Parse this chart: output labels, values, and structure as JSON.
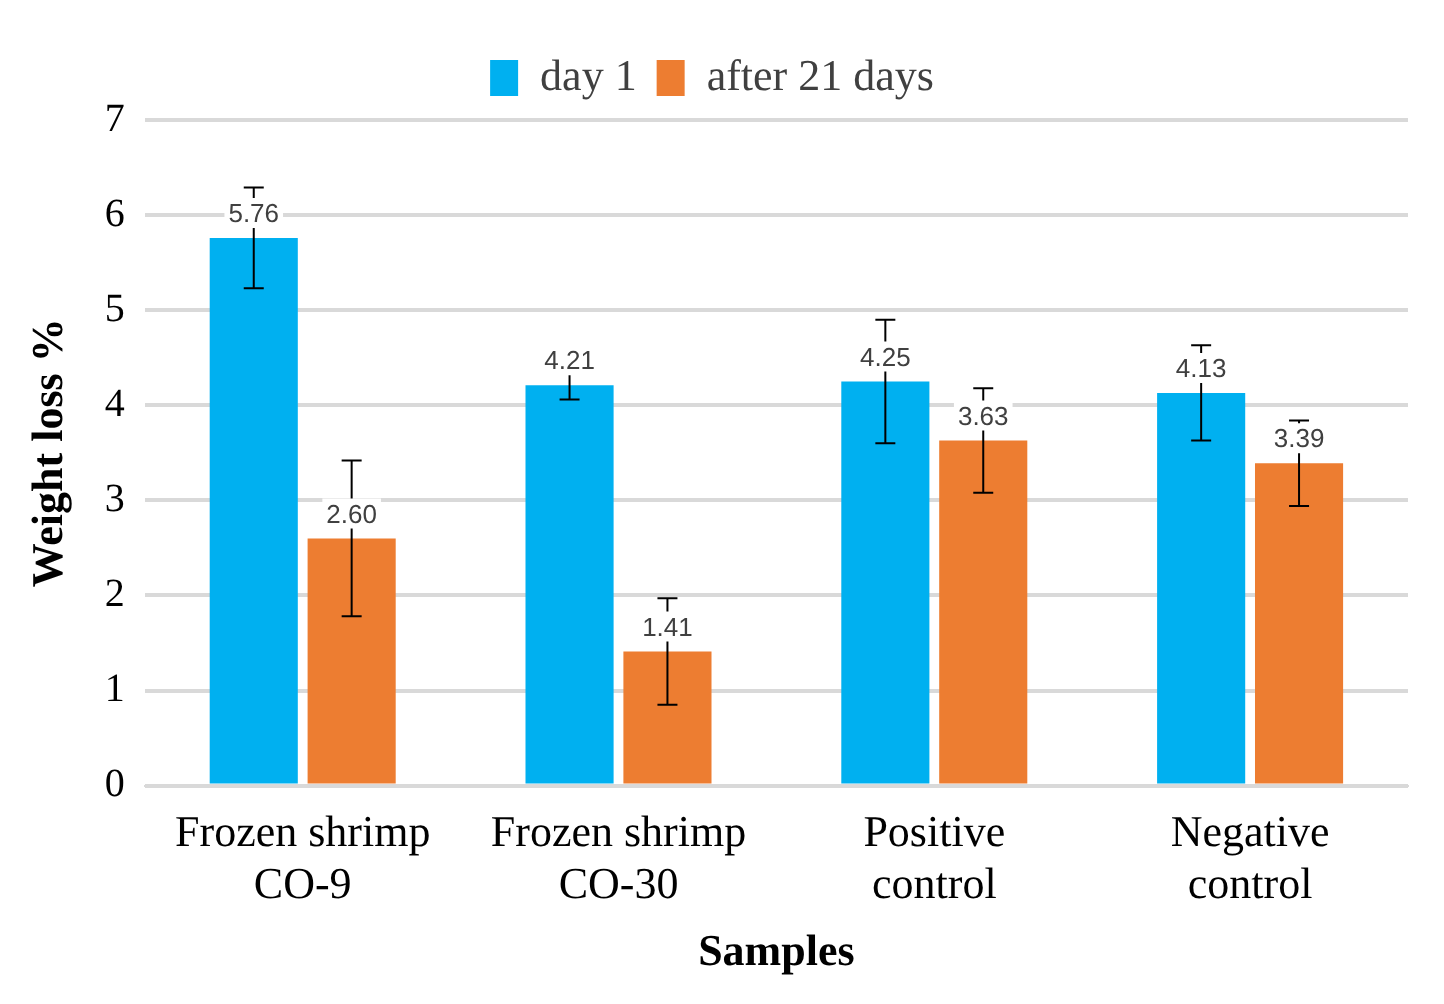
{
  "chart_data": {
    "type": "bar",
    "xlabel": "Samples",
    "ylabel": "Weight loss %",
    "categories": [
      "Frozen shrimp CO-9",
      "Frozen shrimp CO-30",
      "Positive control",
      "Negative control"
    ],
    "series": [
      {
        "name": "day 1",
        "color": "#00b0f0",
        "values": [
          5.76,
          4.21,
          4.25,
          4.13
        ],
        "errors": [
          0.53,
          0.15,
          0.65,
          0.5
        ],
        "value_labels": [
          "5.76",
          "4.21",
          "4.25",
          "4.13"
        ]
      },
      {
        "name": "after 21 days",
        "color": "#ed7d31",
        "values": [
          2.6,
          1.41,
          3.63,
          3.39
        ],
        "errors": [
          0.82,
          0.56,
          0.55,
          0.45
        ],
        "value_labels": [
          "2.60",
          "1.41",
          "3.63",
          "3.39"
        ]
      }
    ],
    "ylim": [
      0,
      7
    ],
    "yticks": [
      0,
      1,
      2,
      3,
      4,
      5,
      6,
      7
    ],
    "grid": "y",
    "legend": "top"
  }
}
